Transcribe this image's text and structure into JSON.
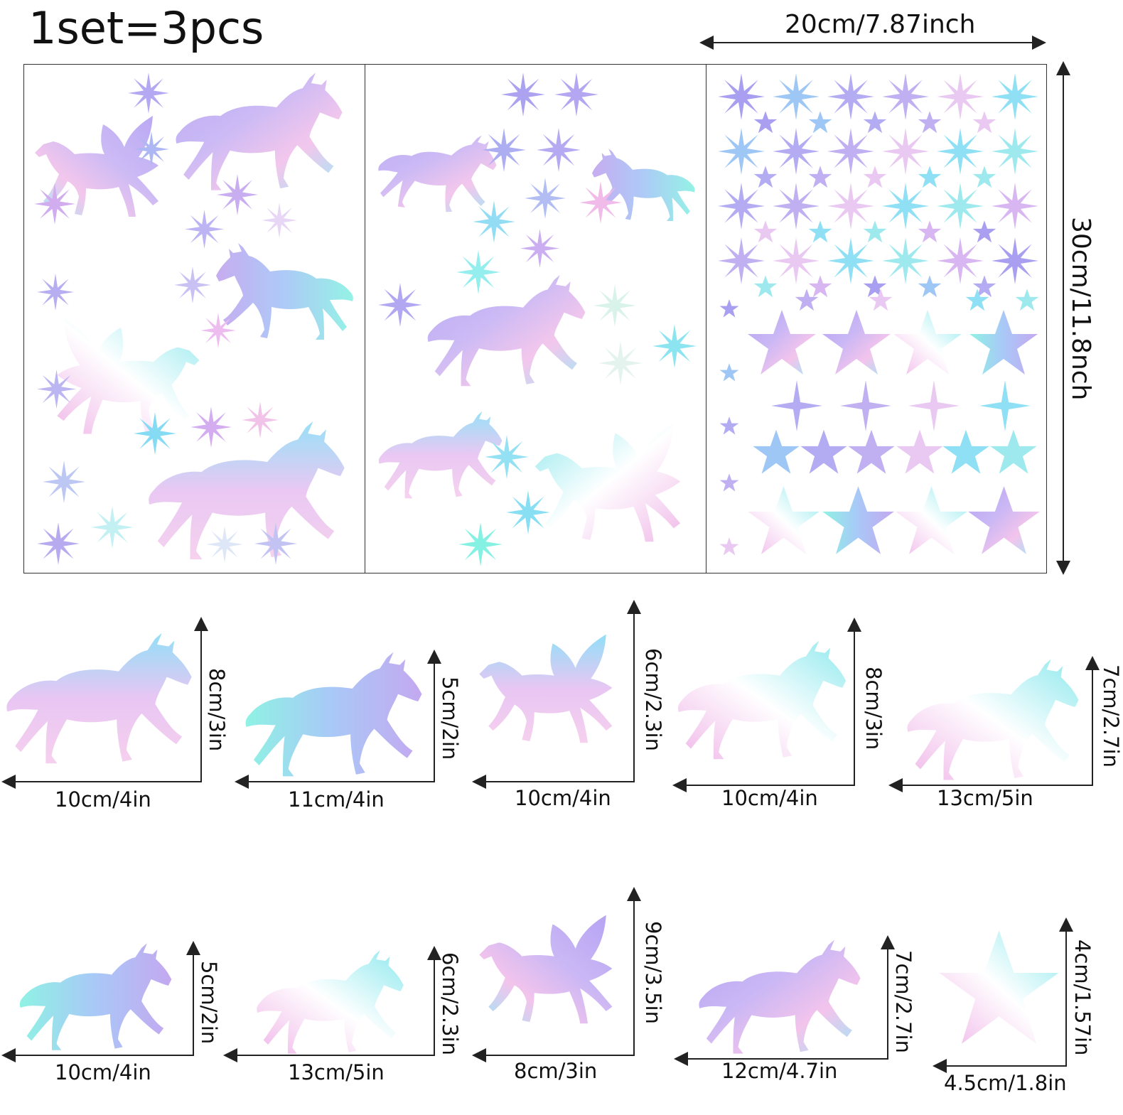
{
  "header": {
    "title": "1set=3pcs",
    "width_label": "20cm/7.87inch",
    "height_label": "30cm/11.8nch"
  },
  "colors": {
    "lavender": "#b9a7f2",
    "sky": "#8fd6f6",
    "mint": "#8ff2e4",
    "pink": "#f6b5e6",
    "white": "#ffffff",
    "line": "#222222"
  },
  "sheets": [
    {
      "name": "sheet-1-unicorns"
    },
    {
      "name": "sheet-2-unicorns"
    },
    {
      "name": "sheet-3-stars"
    }
  ],
  "pieces_row1": [
    {
      "shape": "unicorn",
      "width": "10cm/4in",
      "height": "8cm/3in"
    },
    {
      "shape": "unicorn",
      "width": "11cm/4in",
      "height": "5cm/2in"
    },
    {
      "shape": "pegasus",
      "width": "10cm/4in",
      "height": "6cm/2.3in"
    },
    {
      "shape": "unicorn",
      "width": "10cm/4in",
      "height": "8cm/3in"
    },
    {
      "shape": "unicorn",
      "width": "13cm/5in",
      "height": "7cm/2.7in"
    }
  ],
  "pieces_row2": [
    {
      "shape": "horse",
      "width": "10cm/4in",
      "height": "5cm/2in"
    },
    {
      "shape": "unicorn",
      "width": "13cm/5in",
      "height": "6cm/2.3in"
    },
    {
      "shape": "pegasus",
      "width": "8cm/3in",
      "height": "9cm/3.5in"
    },
    {
      "shape": "unicorn",
      "width": "12cm/4.7in",
      "height": "7cm/2.7in"
    },
    {
      "shape": "star",
      "width": "4.5cm/1.8in",
      "height": "4cm/1.57in"
    }
  ]
}
